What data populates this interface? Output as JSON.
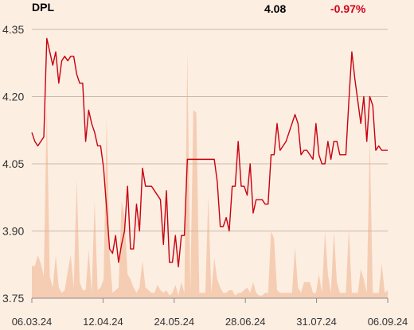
{
  "header": {
    "ticker": "DPL",
    "price": "4.08",
    "change": "-0.97%"
  },
  "colors": {
    "background": "#fdeee2",
    "line": "#c8000f",
    "volume": "#f5cdb3",
    "grid": "#c9b9ab",
    "change_negative": "#d0021b"
  },
  "chart_data": {
    "type": "line",
    "title": "DPL",
    "ylim": [
      3.75,
      4.35
    ],
    "yticks": [
      "4.35",
      "4.20",
      "4.05",
      "3.90",
      "3.75"
    ],
    "ytick_values": [
      4.35,
      4.2,
      4.05,
      3.9,
      3.75
    ],
    "xticks": [
      "06.03.24",
      "12.04.24",
      "24.05.24",
      "28.06.24",
      "31.07.24",
      "06.09.24"
    ],
    "grid": true,
    "series": [
      {
        "values": [
          4.12,
          4.1,
          4.09,
          4.1,
          4.11,
          4.33,
          4.3,
          4.27,
          4.3,
          4.23,
          4.28,
          4.29,
          4.28,
          4.29,
          4.29,
          4.25,
          4.23,
          4.23,
          4.1,
          4.17,
          4.14,
          4.12,
          4.09,
          4.09,
          4.04,
          3.95,
          3.86,
          3.85,
          3.89,
          3.83,
          3.87,
          3.9,
          4.0,
          3.86,
          3.86,
          3.96,
          3.9,
          4.04,
          4.0,
          4.0,
          4.0,
          3.99,
          3.98,
          3.97,
          3.87,
          3.99,
          3.83,
          3.83,
          3.89,
          3.82,
          3.89,
          3.89,
          4.06,
          4.06,
          4.06,
          4.06,
          4.06,
          4.06,
          4.06,
          4.06,
          4.06,
          4.06,
          4.01,
          3.91,
          3.91,
          3.93,
          3.9,
          4.0,
          4.0,
          4.1,
          4.0,
          4.0,
          3.98,
          4.05,
          3.94,
          3.97,
          3.97,
          3.97,
          3.96,
          3.96,
          4.07,
          4.07,
          4.14,
          4.08,
          4.09,
          4.1,
          4.12,
          4.14,
          4.16,
          4.14,
          4.07,
          4.08,
          4.08,
          4.07,
          4.06,
          4.14,
          4.07,
          4.05,
          4.05,
          4.1,
          4.06,
          4.1,
          4.1,
          4.07,
          4.07,
          4.07,
          4.19,
          4.3,
          4.24,
          4.19,
          4.14,
          4.2,
          4.1,
          4.2,
          4.18,
          4.08,
          4.09,
          4.08,
          4.08,
          4.08
        ]
      }
    ],
    "volume": [
      0.12,
      0.12,
      0.16,
      0.13,
      0.08,
      0.72,
      0.08,
      0.04,
      0.16,
      0.04,
      0.02,
      0.03,
      0.1,
      0.16,
      0.04,
      0.44,
      0.06,
      0.03,
      0.03,
      0.18,
      0.02,
      0.36,
      0.03,
      0.04,
      0.07,
      0.67,
      0.16,
      0.02,
      0.03,
      0.04,
      0.36,
      0.3,
      0.09,
      0.07,
      0.04,
      0.02,
      0.04,
      0.14,
      0.04,
      0.03,
      0.02,
      0.02,
      0.05,
      0.03,
      0.02,
      0.03,
      0.01,
      0.02,
      0.05,
      0.01,
      0.06,
      0.02,
      0.92,
      0.02,
      0.7,
      0.69,
      0.02,
      0.02,
      0.02,
      0.38,
      0.02,
      0.15,
      0.07,
      0.04,
      0.02,
      0.02,
      0.03,
      0.03,
      0.01,
      0.02,
      0.02,
      0.03,
      0.04,
      0.02,
      0.06,
      0.02,
      0.01,
      0.01,
      0.02,
      0.02,
      0.25,
      0.22,
      0.03,
      0.02,
      0.02,
      0.02,
      0.02,
      0.02,
      0.19,
      0.04,
      0.02,
      0.06,
      0.06,
      0.06,
      0.02,
      0.02,
      0.09,
      0.02,
      0.25,
      0.09,
      0.02,
      0.25,
      0.06,
      0.02,
      0.02,
      0.02,
      0.26,
      0.02,
      0.02,
      0.02,
      0.11,
      0.07,
      0.02,
      0.6,
      0.02,
      0.02,
      0.02,
      0.13,
      0.02,
      0.03
    ]
  }
}
